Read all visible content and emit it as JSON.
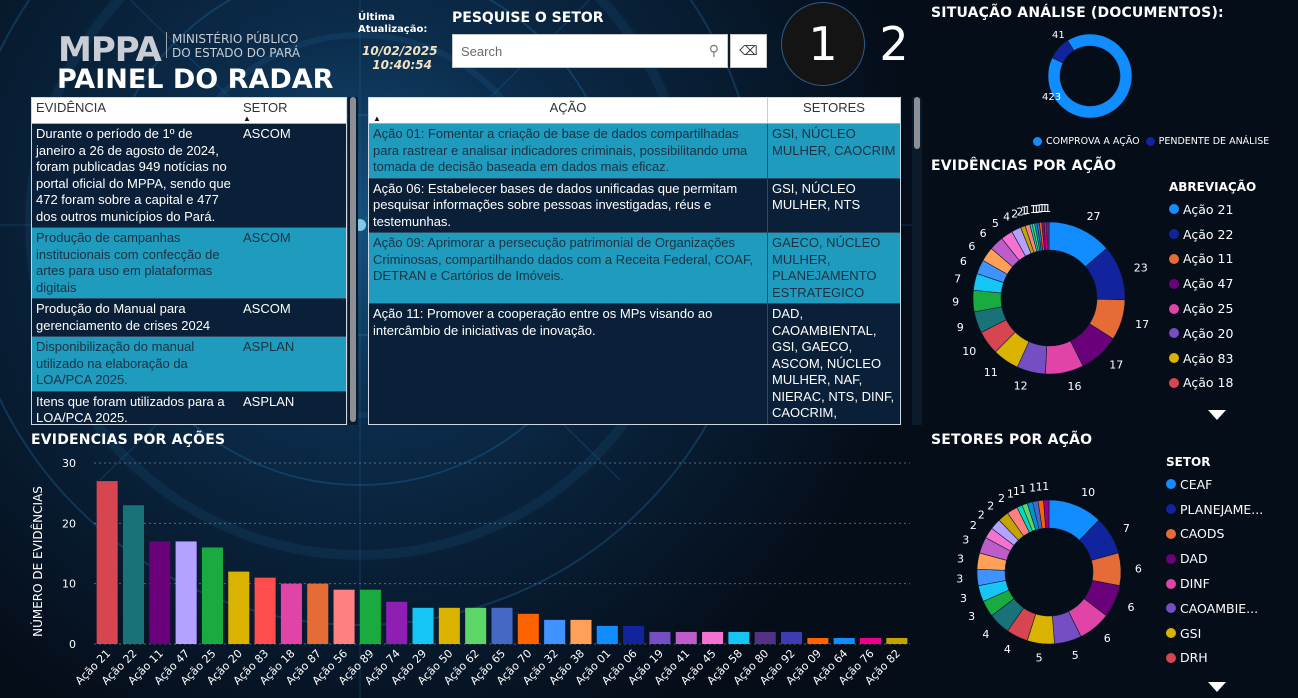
{
  "header": {
    "org_logo": "MPPA",
    "org_name_line1": "MINISTÉRIO PÚBLICO",
    "org_name_line2": "DO ESTADO DO PARÁ",
    "title": "PAINEL DO RADAR",
    "update_label_line1": "Última",
    "update_label_line2": "Atualização:",
    "update_date": "10/02/2025",
    "update_time": "10:40:54"
  },
  "search": {
    "title": "PESQUISE O SETOR",
    "placeholder": "Search",
    "icon": "search-icon",
    "clear_icon": "eraser-icon"
  },
  "pages": {
    "page1": "1",
    "page2": "2"
  },
  "evidence_table": {
    "headers": {
      "evidencia": "EVIDÊNCIA",
      "setor": "SETOR"
    },
    "rows": [
      {
        "evidencia": "Durante o período de 1º de janeiro a 26 de agosto de 2024, foram publicadas 949 notícias no portal oficial do MPPA, sendo que 472 foram sobre a capital e 477 dos outros municípios do Pará.",
        "setor": "ASCOM"
      },
      {
        "evidencia": "Produção de campanhas institucionais com confecção de artes para uso em plataformas digitais",
        "setor": "ASCOM"
      },
      {
        "evidencia": "Produção do Manual para gerenciamento de crises 2024",
        "setor": "ASCOM"
      },
      {
        "evidencia": "Disponibilização do manual utilizado na elaboração da LOA/PCA 2025.",
        "setor": "ASPLAN"
      },
      {
        "evidencia": "Itens que foram utilizados para a LOA/PCA 2025.",
        "setor": "ASPLAN"
      }
    ]
  },
  "action_table": {
    "headers": {
      "acao": "AÇÃO",
      "setores": "SETORES"
    },
    "rows": [
      {
        "acao": "Ação 01: Fomentar a criação de base de dados compartilhadas para rastrear e analisar indicadores criminais, possibilitando uma tomada de decisão baseada em dados mais eficaz.",
        "setores": "GSI, NÚCLEO MULHER, CAOCRIM"
      },
      {
        "acao": "Ação 06: Estabelecer bases de dados unificadas que permitam pesquisar informações sobre pessoas investigadas, réus e testemunhas.",
        "setores": "GSI, NÚCLEO MULHER, NTS"
      },
      {
        "acao": "Ação 09: Aprimorar a persecução patrimonial de Organizações Criminosas, compartilhando dados com a Receita Federal, COAF, DETRAN e Cartórios de Imóveis.",
        "setores": "GAECO, NÚCLEO MULHER, PLANEJAMENTO ESTRATEGICO"
      },
      {
        "acao": "Ação 11: Promover a cooperação entre os MPs visando ao intercâmbio de iniciativas de inovação.",
        "setores": "DAD, CAOAMBIENTAL, GSI, GAECO, ASCOM, NÚCLEO MULHER, NAF, NIERAC, NTS, DINF, CAOCRIM, CAOCPC, CAOCRIM, CAOTEC"
      }
    ]
  },
  "situacao": {
    "title": "SITUAÇÃO ANÁLISE (DOCUMENTOS):",
    "legend": [
      "COMPROVA A AÇÃO",
      "PENDENTE DE ANÁLISE"
    ],
    "colors": [
      "#118dff",
      "#12239e"
    ]
  },
  "evid_por_acao_donut": {
    "title": "EVIDÊNCIAS POR AÇÃO",
    "legend_title": "ABREVIAÇÃO",
    "legend": [
      {
        "label": "Ação 21",
        "color": "#118dff"
      },
      {
        "label": "Ação 22",
        "color": "#12239e"
      },
      {
        "label": "Ação 11",
        "color": "#e66c37"
      },
      {
        "label": "Ação 47",
        "color": "#6b007b"
      },
      {
        "label": "Ação 25",
        "color": "#e044a7"
      },
      {
        "label": "Ação 20",
        "color": "#744ec2"
      },
      {
        "label": "Ação 83",
        "color": "#d9b300"
      },
      {
        "label": "Ação 18",
        "color": "#d64550"
      }
    ]
  },
  "setores_donut": {
    "title": "SETORES POR AÇÃO",
    "legend_title": "SETOR",
    "legend": [
      {
        "label": "CEAF",
        "color": "#118dff"
      },
      {
        "label": "PLANEJAME...",
        "color": "#12239e"
      },
      {
        "label": "CAODS",
        "color": "#e66c37"
      },
      {
        "label": "DAD",
        "color": "#6b007b"
      },
      {
        "label": "DINF",
        "color": "#e044a7"
      },
      {
        "label": "CAOAMBIE...",
        "color": "#744ec2"
      },
      {
        "label": "GSI",
        "color": "#d9b300"
      },
      {
        "label": "DRH",
        "color": "#d64550"
      }
    ]
  },
  "bar_section": {
    "title": "EVIDENCIAS POR AÇÕES"
  },
  "chart_data": [
    {
      "type": "pie",
      "id": "situacao",
      "title": "SITUAÇÃO ANÁLISE (DOCUMENTOS):",
      "labels": [
        "COMPROVA A AÇÃO",
        "PENDENTE DE ANÁLISE"
      ],
      "values": [
        423,
        41
      ],
      "colors": [
        "#118dff",
        "#12239e"
      ],
      "legend_position": "bottom"
    },
    {
      "type": "pie",
      "id": "evid_por_acao",
      "title": "EVIDÊNCIAS POR AÇÃO",
      "values": [
        27,
        23,
        17,
        17,
        16,
        12,
        11,
        10,
        9,
        9,
        7,
        6,
        6,
        6,
        5,
        4,
        2,
        2,
        1,
        1,
        1,
        1,
        1,
        1,
        1,
        1
      ],
      "colors": [
        "#118dff",
        "#12239e",
        "#e66c37",
        "#6b007b",
        "#e044a7",
        "#744ec2",
        "#d9b300",
        "#d64550",
        "#197278",
        "#1aab40",
        "#15c6f4",
        "#4092ff",
        "#ffa058",
        "#be5dc9",
        "#f472d0",
        "#b5a1ff",
        "#c4a200",
        "#ff8080",
        "#00dbbc",
        "#5bd667",
        "#0091d5",
        "#4668c5",
        "#ff6300",
        "#99008a",
        "#ec008c",
        "#533285"
      ],
      "legend_title": "ABREVIAÇÃO",
      "legend_position": "right"
    },
    {
      "type": "pie",
      "id": "setores_por_acao",
      "title": "SETORES POR AÇÃO",
      "values": [
        10,
        7,
        6,
        6,
        6,
        5,
        5,
        4,
        4,
        3,
        3,
        3,
        3,
        3,
        2,
        2,
        2,
        2,
        1,
        1,
        1,
        1,
        1,
        1
      ],
      "colors": [
        "#118dff",
        "#12239e",
        "#e66c37",
        "#6b007b",
        "#e044a7",
        "#744ec2",
        "#d9b300",
        "#d64550",
        "#197278",
        "#1aab40",
        "#15c6f4",
        "#4092ff",
        "#ffa058",
        "#be5dc9",
        "#f472d0",
        "#b5a1ff",
        "#c4a200",
        "#ff8080",
        "#00dbbc",
        "#5bd667",
        "#0091d5",
        "#4668c5",
        "#ff6300",
        "#99008a"
      ],
      "legend_title": "SETOR",
      "legend_position": "right"
    },
    {
      "type": "bar",
      "id": "evidencias_por_acoes",
      "title": "EVIDENCIAS POR AÇÕES",
      "xlabel": "",
      "ylabel": "NÚMERO DE EVIDÊNCIAS",
      "ylim": [
        0,
        30
      ],
      "yticks": [
        0,
        10,
        20,
        30
      ],
      "grid": true,
      "categories": [
        "Ação 21",
        "Ação 22",
        "Ação 11",
        "Ação 47",
        "Ação 25",
        "Ação 20",
        "Ação 83",
        "Ação 18",
        "Ação 87",
        "Ação 56",
        "Ação 89",
        "Ação 74",
        "Ação 29",
        "Ação 50",
        "Ação 62",
        "Ação 65",
        "Ação 70",
        "Ação 32",
        "Ação 38",
        "Ação 01",
        "Ação 06",
        "Ação 19",
        "Ação 41",
        "Ação 45",
        "Ação 58",
        "Ação 80",
        "Ação 92",
        "Ação 09",
        "Ação 64",
        "Ação 76",
        "Ação 82"
      ],
      "values": [
        27,
        23,
        17,
        17,
        16,
        12,
        11,
        10,
        10,
        9,
        9,
        7,
        6,
        6,
        6,
        6,
        5,
        4,
        4,
        3,
        3,
        2,
        2,
        2,
        2,
        2,
        2,
        1,
        1,
        1,
        1
      ],
      "colors": [
        "#d64550",
        "#197278",
        "#6b007b",
        "#b5a1ff",
        "#1aab40",
        "#d9b300",
        "#ff4d4d",
        "#e044a7",
        "#e66c37",
        "#ff8080",
        "#1aab40",
        "#8f1fb3",
        "#15c6f4",
        "#d9b300",
        "#5bd667",
        "#4668c5",
        "#ff6300",
        "#4092ff",
        "#ffa058",
        "#118dff",
        "#12239e",
        "#744ec2",
        "#be5dc9",
        "#f472d0",
        "#15c6f4",
        "#533285",
        "#3d3cb3",
        "#ff6300",
        "#118dff",
        "#ec008c",
        "#c4a200"
      ]
    }
  ]
}
